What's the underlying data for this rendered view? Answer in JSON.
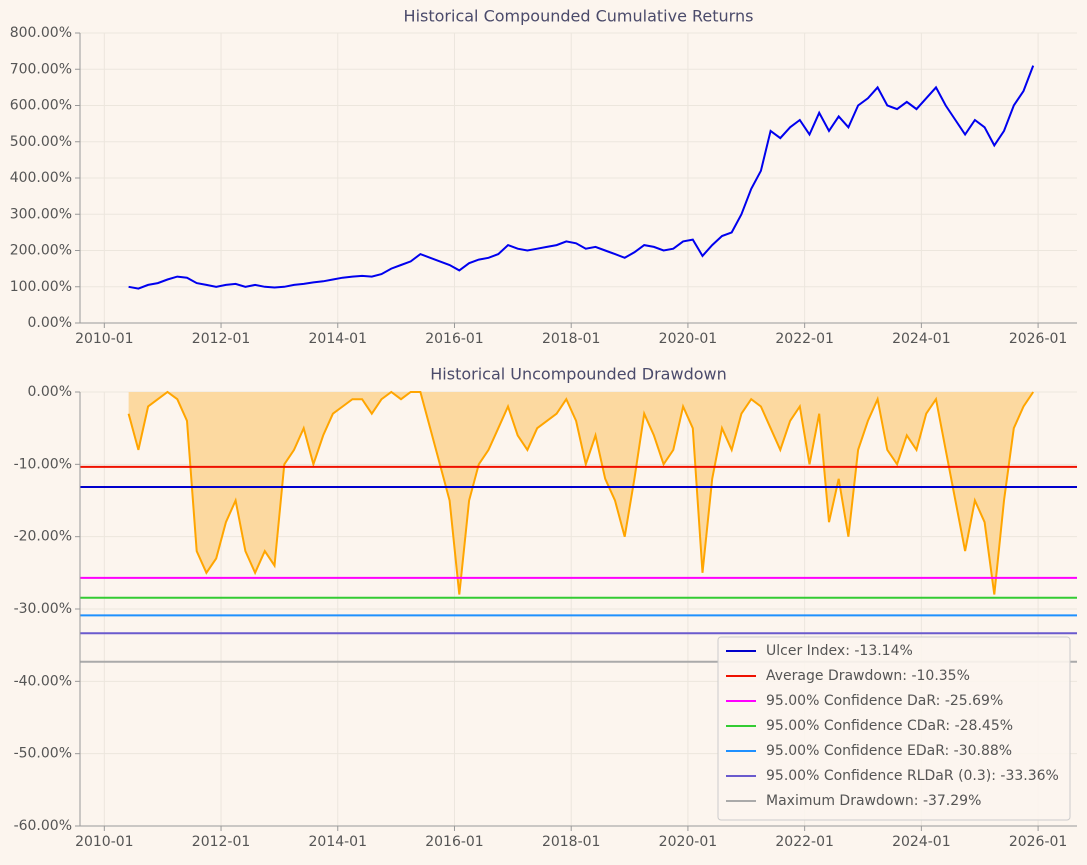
{
  "chart_data": [
    {
      "type": "line",
      "title": "Historical Compounded Cumulative Returns",
      "x": [
        "2010-06",
        "2010-08",
        "2010-10",
        "2010-12",
        "2011-02",
        "2011-04",
        "2011-06",
        "2011-08",
        "2011-10",
        "2011-12",
        "2012-02",
        "2012-04",
        "2012-06",
        "2012-08",
        "2012-10",
        "2012-12",
        "2013-02",
        "2013-04",
        "2013-06",
        "2013-08",
        "2013-10",
        "2013-12",
        "2014-02",
        "2014-04",
        "2014-06",
        "2014-08",
        "2014-10",
        "2014-12",
        "2015-02",
        "2015-04",
        "2015-06",
        "2015-08",
        "2015-10",
        "2015-12",
        "2016-02",
        "2016-04",
        "2016-06",
        "2016-08",
        "2016-10",
        "2016-12",
        "2017-02",
        "2017-04",
        "2017-06",
        "2017-08",
        "2017-10",
        "2017-12",
        "2018-02",
        "2018-04",
        "2018-06",
        "2018-08",
        "2018-10",
        "2018-12",
        "2019-02",
        "2019-04",
        "2019-06",
        "2019-08",
        "2019-10",
        "2019-12",
        "2020-02",
        "2020-04",
        "2020-06",
        "2020-08",
        "2020-10",
        "2020-12",
        "2021-02",
        "2021-04",
        "2021-06",
        "2021-08",
        "2021-10",
        "2021-12",
        "2022-02",
        "2022-04",
        "2022-06",
        "2022-08",
        "2022-10",
        "2022-12",
        "2023-02",
        "2023-04",
        "2023-06",
        "2023-08",
        "2023-10",
        "2023-12",
        "2024-02",
        "2024-04",
        "2024-06",
        "2024-08",
        "2024-10",
        "2024-12",
        "2025-02",
        "2025-04",
        "2025-06",
        "2025-08",
        "2025-10",
        "2025-12"
      ],
      "series": [
        {
          "name": "Cumulative Returns",
          "color": "#0000ee",
          "values": [
            100,
            95,
            105,
            110,
            120,
            128,
            125,
            110,
            105,
            100,
            105,
            108,
            100,
            105,
            100,
            98,
            100,
            105,
            108,
            112,
            115,
            120,
            125,
            128,
            130,
            128,
            135,
            150,
            160,
            170,
            190,
            180,
            170,
            160,
            145,
            165,
            175,
            180,
            190,
            215,
            205,
            200,
            205,
            210,
            215,
            225,
            220,
            205,
            210,
            200,
            190,
            180,
            195,
            215,
            210,
            200,
            205,
            225,
            230,
            185,
            215,
            240,
            250,
            300,
            370,
            420,
            530,
            510,
            540,
            560,
            520,
            580,
            530,
            570,
            540,
            600,
            620,
            650,
            600,
            590,
            610,
            590,
            620,
            650,
            600,
            560,
            520,
            560,
            540,
            490,
            530,
            600,
            640,
            710
          ]
        }
      ],
      "xlim": [
        "2009-08",
        "2026-09"
      ],
      "xticks": [
        "2010-01",
        "2012-01",
        "2014-01",
        "2016-01",
        "2018-01",
        "2020-01",
        "2022-01",
        "2024-01",
        "2026-01"
      ],
      "ylim": [
        0,
        800
      ],
      "yticks": [
        {
          "value": 0,
          "label": "0.00%"
        },
        {
          "value": 100,
          "label": "100.00%"
        },
        {
          "value": 200,
          "label": "200.00%"
        },
        {
          "value": 300,
          "label": "300.00%"
        },
        {
          "value": 400,
          "label": "400.00%"
        },
        {
          "value": 500,
          "label": "500.00%"
        },
        {
          "value": 600,
          "label": "600.00%"
        },
        {
          "value": 700,
          "label": "700.00%"
        },
        {
          "value": 800,
          "label": "800.00%"
        }
      ],
      "grid": true
    },
    {
      "type": "area",
      "title": "Historical Uncompounded Drawdown",
      "x": [
        "2010-06",
        "2010-08",
        "2010-10",
        "2010-12",
        "2011-02",
        "2011-04",
        "2011-06",
        "2011-08",
        "2011-10",
        "2011-12",
        "2012-02",
        "2012-04",
        "2012-06",
        "2012-08",
        "2012-10",
        "2012-12",
        "2013-02",
        "2013-04",
        "2013-06",
        "2013-08",
        "2013-10",
        "2013-12",
        "2014-02",
        "2014-04",
        "2014-06",
        "2014-08",
        "2014-10",
        "2014-12",
        "2015-02",
        "2015-04",
        "2015-06",
        "2015-08",
        "2015-10",
        "2015-12",
        "2016-02",
        "2016-04",
        "2016-06",
        "2016-08",
        "2016-10",
        "2016-12",
        "2017-02",
        "2017-04",
        "2017-06",
        "2017-08",
        "2017-10",
        "2017-12",
        "2018-02",
        "2018-04",
        "2018-06",
        "2018-08",
        "2018-10",
        "2018-12",
        "2019-02",
        "2019-04",
        "2019-06",
        "2019-08",
        "2019-10",
        "2019-12",
        "2020-02",
        "2020-04",
        "2020-06",
        "2020-08",
        "2020-10",
        "2020-12",
        "2021-02",
        "2021-04",
        "2021-06",
        "2021-08",
        "2021-10",
        "2021-12",
        "2022-02",
        "2022-04",
        "2022-06",
        "2022-08",
        "2022-10",
        "2022-12",
        "2023-02",
        "2023-04",
        "2023-06",
        "2023-08",
        "2023-10",
        "2023-12",
        "2024-02",
        "2024-04",
        "2024-06",
        "2024-08",
        "2024-10",
        "2024-12",
        "2025-02",
        "2025-04",
        "2025-06",
        "2025-08",
        "2025-10",
        "2025-12"
      ],
      "series": [
        {
          "name": "Drawdown",
          "color": "#ffa500",
          "fill": "#fcd9a0",
          "values": [
            -3,
            -8,
            -2,
            -1,
            0,
            -1,
            -4,
            -22,
            -25,
            -23,
            -18,
            -15,
            -22,
            -25,
            -22,
            -24,
            -10,
            -8,
            -5,
            -10,
            -6,
            -3,
            -2,
            -1,
            -1,
            -3,
            -1,
            0,
            -1,
            0,
            0,
            -5,
            -10,
            -15,
            -28,
            -15,
            -10,
            -8,
            -5,
            -2,
            -6,
            -8,
            -5,
            -4,
            -3,
            -1,
            -4,
            -10,
            -6,
            -12,
            -15,
            -20,
            -12,
            -3,
            -6,
            -10,
            -8,
            -2,
            -5,
            -25,
            -12,
            -5,
            -8,
            -3,
            -1,
            -2,
            -5,
            -8,
            -4,
            -2,
            -10,
            -3,
            -18,
            -12,
            -20,
            -8,
            -4,
            -1,
            -8,
            -10,
            -6,
            -8,
            -3,
            -1,
            -8,
            -15,
            -22,
            -15,
            -18,
            -28,
            -15,
            -5,
            -2,
            0
          ]
        }
      ],
      "hlines": [
        {
          "name": "Ulcer Index: -13.14%",
          "value": -13.14,
          "color": "#0000cc"
        },
        {
          "name": "Average Drawdown: -10.35%",
          "value": -10.35,
          "color": "#ee1100"
        },
        {
          "name": "95.00% Confidence DaR: -25.69%",
          "value": -25.69,
          "color": "#ff00ff"
        },
        {
          "name": "95.00% Confidence CDaR: -28.45%",
          "value": -28.45,
          "color": "#33cc33"
        },
        {
          "name": "95.00% Confidence EDaR: -30.88%",
          "value": -30.88,
          "color": "#1e90ff"
        },
        {
          "name": "95.00% Confidence RLDaR (0.3): -33.36%",
          "value": -33.36,
          "color": "#6a5acd"
        },
        {
          "name": "Maximum Drawdown: -37.29%",
          "value": -37.29,
          "color": "#aaaaaa"
        }
      ],
      "legend": "lower right",
      "xlim": [
        "2009-08",
        "2026-09"
      ],
      "xticks": [
        "2010-01",
        "2012-01",
        "2014-01",
        "2016-01",
        "2018-01",
        "2020-01",
        "2022-01",
        "2024-01",
        "2026-01"
      ],
      "ylim": [
        -60,
        0
      ],
      "yticks": [
        {
          "value": -60,
          "label": "-60.00%"
        },
        {
          "value": -50,
          "label": "-50.00%"
        },
        {
          "value": -40,
          "label": "-40.00%"
        },
        {
          "value": -30,
          "label": "-30.00%"
        },
        {
          "value": -20,
          "label": "-20.00%"
        },
        {
          "value": -10,
          "label": "-10.00%"
        },
        {
          "value": 0,
          "label": "0.00%"
        }
      ],
      "grid": true
    }
  ]
}
